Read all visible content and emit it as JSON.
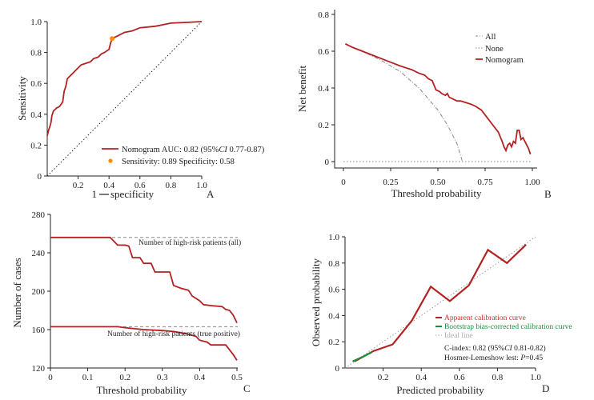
{
  "chart_data": [
    {
      "panel": "A",
      "type": "line",
      "xlabel_pre": "1",
      "xlabel_post": "specificity",
      "ylabel": "Sensitivity",
      "xlim": [
        0,
        1
      ],
      "ylim": [
        0,
        1
      ],
      "x_ticks": [
        "0.2",
        "0.4",
        "0.6",
        "0.8",
        "1.0"
      ],
      "y_ticks": [
        "0",
        "0.2",
        "0.4",
        "0.6",
        "0.8",
        "1.0"
      ],
      "series": [
        {
          "name": "Nomogram AUC",
          "color": "#b22222",
          "points": [
            [
              0,
              0.26
            ],
            [
              0.01,
              0.3
            ],
            [
              0.02,
              0.33
            ],
            [
              0.025,
              0.35
            ],
            [
              0.03,
              0.39
            ],
            [
              0.04,
              0.42
            ],
            [
              0.06,
              0.44
            ],
            [
              0.08,
              0.45
            ],
            [
              0.1,
              0.48
            ],
            [
              0.11,
              0.55
            ],
            [
              0.12,
              0.58
            ],
            [
              0.13,
              0.63
            ],
            [
              0.15,
              0.65
            ],
            [
              0.18,
              0.68
            ],
            [
              0.2,
              0.7
            ],
            [
              0.22,
              0.72
            ],
            [
              0.25,
              0.73
            ],
            [
              0.28,
              0.74
            ],
            [
              0.3,
              0.76
            ],
            [
              0.33,
              0.77
            ],
            [
              0.35,
              0.79
            ],
            [
              0.37,
              0.8
            ],
            [
              0.4,
              0.82
            ],
            [
              0.41,
              0.86
            ],
            [
              0.42,
              0.89
            ],
            [
              0.44,
              0.9
            ],
            [
              0.46,
              0.91
            ],
            [
              0.5,
              0.93
            ],
            [
              0.55,
              0.94
            ],
            [
              0.6,
              0.96
            ],
            [
              0.7,
              0.97
            ],
            [
              0.75,
              0.98
            ],
            [
              0.8,
              0.99
            ],
            [
              0.9,
              0.995
            ],
            [
              1.0,
              1.0
            ]
          ]
        },
        {
          "name": "Reference",
          "color": "#222222",
          "style": "dotted",
          "points": [
            [
              0,
              0
            ],
            [
              1,
              1
            ]
          ]
        }
      ],
      "marker": {
        "x": 0.42,
        "y": 0.89,
        "color": "#ff8c00"
      },
      "legend": {
        "auc_label": "Nomogram AUC: 0.82 (95%",
        "ci_italic": "CI",
        "ci_values": " 0.77-0.87)",
        "marker_label": "Sensitivity: 0.89   Specificity: 0.58"
      },
      "letter": "A"
    },
    {
      "panel": "B",
      "type": "line",
      "xlabel": "Threshold probability",
      "ylabel": "Net benefit",
      "xlim": [
        0,
        1
      ],
      "ylim": [
        -0.05,
        0.8
      ],
      "x_ticks": [
        "0",
        "0.25",
        "0.50",
        "0.75",
        "1.00"
      ],
      "y_ticks": [
        "0",
        "0.2",
        "0.4",
        "0.6",
        "0.8"
      ],
      "series": [
        {
          "name": "All",
          "color": "#888888",
          "style": "dashdot",
          "points": [
            [
              0.01,
              0.64
            ],
            [
              0.1,
              0.6
            ],
            [
              0.2,
              0.55
            ],
            [
              0.3,
              0.49
            ],
            [
              0.4,
              0.4
            ],
            [
              0.5,
              0.28
            ],
            [
              0.55,
              0.2
            ],
            [
              0.6,
              0.1
            ],
            [
              0.63,
              0.0
            ]
          ]
        },
        {
          "name": "None",
          "color": "#888888",
          "style": "dotted",
          "points": [
            [
              0,
              0
            ],
            [
              1,
              0
            ]
          ]
        },
        {
          "name": "Nomogram",
          "color": "#b22222",
          "points": [
            [
              0.01,
              0.64
            ],
            [
              0.05,
              0.62
            ],
            [
              0.1,
              0.6
            ],
            [
              0.15,
              0.58
            ],
            [
              0.2,
              0.56
            ],
            [
              0.25,
              0.54
            ],
            [
              0.3,
              0.52
            ],
            [
              0.33,
              0.51
            ],
            [
              0.36,
              0.5
            ],
            [
              0.4,
              0.48
            ],
            [
              0.43,
              0.47
            ],
            [
              0.45,
              0.45
            ],
            [
              0.47,
              0.44
            ],
            [
              0.49,
              0.39
            ],
            [
              0.51,
              0.38
            ],
            [
              0.52,
              0.37
            ],
            [
              0.54,
              0.36
            ],
            [
              0.55,
              0.37
            ],
            [
              0.56,
              0.35
            ],
            [
              0.58,
              0.34
            ],
            [
              0.6,
              0.33
            ],
            [
              0.62,
              0.33
            ],
            [
              0.65,
              0.32
            ],
            [
              0.68,
              0.31
            ],
            [
              0.7,
              0.3
            ],
            [
              0.73,
              0.28
            ],
            [
              0.76,
              0.24
            ],
            [
              0.79,
              0.2
            ],
            [
              0.82,
              0.16
            ],
            [
              0.84,
              0.11
            ],
            [
              0.85,
              0.08
            ],
            [
              0.86,
              0.06
            ],
            [
              0.87,
              0.09
            ],
            [
              0.88,
              0.1
            ],
            [
              0.89,
              0.08
            ],
            [
              0.9,
              0.11
            ],
            [
              0.91,
              0.1
            ],
            [
              0.92,
              0.17
            ],
            [
              0.93,
              0.17
            ],
            [
              0.94,
              0.12
            ],
            [
              0.95,
              0.13
            ],
            [
              0.96,
              0.11
            ],
            [
              0.98,
              0.07
            ],
            [
              0.99,
              0.04
            ]
          ]
        }
      ],
      "legend": {
        "all": "All",
        "none": "None",
        "nomogram": "Nomogram"
      },
      "letter": "B"
    },
    {
      "panel": "C",
      "type": "line",
      "xlabel": "Threshold probability",
      "ylabel": "Number of cases",
      "xlim": [
        0,
        0.5
      ],
      "ylim": [
        120,
        280
      ],
      "x_ticks": [
        "0",
        "0.1",
        "0.2",
        "0.3",
        "0.4",
        "0.5"
      ],
      "y_ticks": [
        "120",
        "160",
        "200",
        "240",
        "280"
      ],
      "series": [
        {
          "name": "Number of high-risk patients (all)",
          "color": "#b22222",
          "points": [
            [
              0,
              256
            ],
            [
              0.16,
              256
            ],
            [
              0.18,
              248
            ],
            [
              0.2,
              248
            ],
            [
              0.21,
              247
            ],
            [
              0.22,
              235
            ],
            [
              0.24,
              235
            ],
            [
              0.25,
              229
            ],
            [
              0.27,
              229
            ],
            [
              0.28,
              220
            ],
            [
              0.32,
              220
            ],
            [
              0.33,
              206
            ],
            [
              0.35,
              203
            ],
            [
              0.37,
              201
            ],
            [
              0.38,
              195
            ],
            [
              0.4,
              190
            ],
            [
              0.41,
              186
            ],
            [
              0.43,
              185
            ],
            [
              0.46,
              184
            ],
            [
              0.47,
              181
            ],
            [
              0.48,
              180
            ],
            [
              0.49,
              175
            ],
            [
              0.5,
              167
            ]
          ]
        },
        {
          "name": "Number of high-risk patients (true positive)",
          "color": "#b22222",
          "points": [
            [
              0,
              163
            ],
            [
              0.18,
              163
            ],
            [
              0.2,
              162
            ],
            [
              0.25,
              160
            ],
            [
              0.3,
              159
            ],
            [
              0.33,
              158
            ],
            [
              0.36,
              156
            ],
            [
              0.39,
              153
            ],
            [
              0.4,
              149
            ],
            [
              0.42,
              147
            ],
            [
              0.43,
              144
            ],
            [
              0.47,
              144
            ],
            [
              0.48,
              139
            ],
            [
              0.49,
              134
            ],
            [
              0.5,
              128
            ]
          ]
        }
      ],
      "reference_levels": [
        256,
        163
      ],
      "annotations": {
        "all": "Number of high-risk patients (all)",
        "tp": "Number of high-risk patients (true positive)"
      },
      "letter": "C"
    },
    {
      "panel": "D",
      "type": "line",
      "xlabel": "Predicted probability",
      "ylabel": "Observed probability",
      "xlim": [
        0,
        1
      ],
      "ylim": [
        0,
        1
      ],
      "x_ticks": [
        "0.2",
        "0.4",
        "0.6",
        "0.8",
        "1.0"
      ],
      "y_ticks": [
        "0",
        "0.2",
        "0.4",
        "0.6",
        "0.8",
        "1.0"
      ],
      "series": [
        {
          "name": "Ideal line",
          "color": "#999999",
          "style": "dotted",
          "points": [
            [
              0,
              0
            ],
            [
              1,
              1
            ]
          ]
        },
        {
          "name": "Apparent calibration curve",
          "color": "#b22222",
          "points": [
            [
              0.05,
              0.05
            ],
            [
              0.15,
              0.13
            ],
            [
              0.25,
              0.18
            ],
            [
              0.35,
              0.36
            ],
            [
              0.45,
              0.62
            ],
            [
              0.55,
              0.51
            ],
            [
              0.65,
              0.63
            ],
            [
              0.75,
              0.9
            ],
            [
              0.85,
              0.8
            ],
            [
              0.95,
              0.94
            ]
          ]
        },
        {
          "name": "Bootstrap bias-corrected calibration curve",
          "color": "#1a8f3c",
          "points": [
            [
              0.04,
              0.05
            ],
            [
              0.1,
              0.09
            ],
            [
              0.14,
              0.12
            ]
          ]
        }
      ],
      "legend": {
        "apparent": "Apparent calibration curve",
        "bootstrap": "Bootstrap bias-corrected calibration curve",
        "ideal": "Ideal line",
        "cindex_pre": "C-index: 0.82 (95%",
        "cindex_ci": "CI",
        "cindex_post": " 0.81-0.82)",
        "hl_pre": "Hosmer-Lemeshow lest: ",
        "hl_p": "P",
        "hl_post": "=0.45"
      },
      "letter": "D"
    }
  ]
}
